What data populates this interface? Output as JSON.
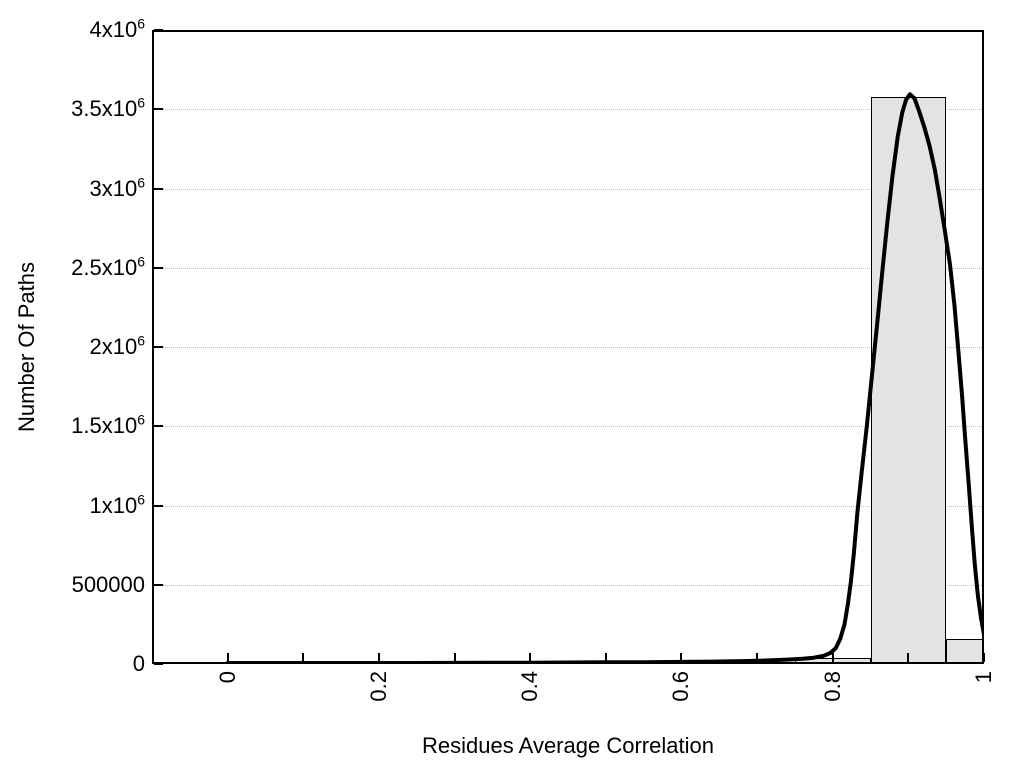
{
  "chart_data": {
    "type": "bar",
    "subtype": "histogram-with-fitted-curve",
    "title": "",
    "xlabel": "Residues Average Correlation",
    "ylabel": "Number Of Paths",
    "xlim": [
      -0.1,
      1.0
    ],
    "ylim": [
      0,
      4000000
    ],
    "grid": "horizontal-dotted",
    "legend": "none",
    "x_ticks": {
      "major_values": [
        0,
        0.2,
        0.4,
        0.6,
        0.8,
        1.0
      ],
      "major_labels": [
        "0",
        "0.2",
        "0.4",
        "0.6",
        "0.8",
        "1"
      ],
      "minor_values": [
        0.1,
        0.3,
        0.5,
        0.7,
        0.9
      ],
      "label_rotation_deg": -90
    },
    "y_ticks": {
      "values": [
        0,
        500000,
        1000000,
        1500000,
        2000000,
        2500000,
        3000000,
        3500000,
        4000000
      ],
      "labels": [
        "0",
        "500000",
        "1x10^6",
        "1.5x10^6",
        "2x10^6",
        "2.5x10^6",
        "3x10^6",
        "3.5x10^6",
        "4x10^6"
      ]
    },
    "grid_y_values": [
      500000,
      1000000,
      1500000,
      2000000,
      2500000,
      3000000,
      3500000
    ],
    "bars": [
      {
        "x0": 0.75,
        "x1": 0.85,
        "count": 40000
      },
      {
        "x0": 0.85,
        "x1": 0.95,
        "count": 3580000
      },
      {
        "x0": 0.95,
        "x1": 1.0,
        "count": 155000
      }
    ],
    "curve_series_name": "fitted-distribution",
    "curve_points": [
      [
        0.0,
        6000
      ],
      [
        0.05,
        6000
      ],
      [
        0.1,
        6000
      ],
      [
        0.15,
        6000
      ],
      [
        0.2,
        6000
      ],
      [
        0.25,
        6500
      ],
      [
        0.3,
        7000
      ],
      [
        0.35,
        7500
      ],
      [
        0.4,
        8500
      ],
      [
        0.45,
        9500
      ],
      [
        0.5,
        10500
      ],
      [
        0.55,
        11500
      ],
      [
        0.6,
        13000
      ],
      [
        0.64,
        15000
      ],
      [
        0.68,
        18000
      ],
      [
        0.7,
        20000
      ],
      [
        0.72,
        23500
      ],
      [
        0.74,
        27500
      ],
      [
        0.76,
        33000
      ],
      [
        0.775,
        40000
      ],
      [
        0.788,
        52000
      ],
      [
        0.797,
        70000
      ],
      [
        0.804,
        100000
      ],
      [
        0.81,
        160000
      ],
      [
        0.8155,
        250000
      ],
      [
        0.82,
        380000
      ],
      [
        0.824,
        520000
      ],
      [
        0.828,
        700000
      ],
      [
        0.8325,
        950000
      ],
      [
        0.838,
        1200000
      ],
      [
        0.845,
        1500000
      ],
      [
        0.852,
        1830000
      ],
      [
        0.859,
        2160000
      ],
      [
        0.865,
        2450000
      ],
      [
        0.872,
        2780000
      ],
      [
        0.879,
        3080000
      ],
      [
        0.886,
        3330000
      ],
      [
        0.892,
        3480000
      ],
      [
        0.897,
        3560000
      ],
      [
        0.902,
        3595000
      ],
      [
        0.908,
        3570000
      ],
      [
        0.914,
        3490000
      ],
      [
        0.921,
        3390000
      ],
      [
        0.928,
        3270000
      ],
      [
        0.935,
        3120000
      ],
      [
        0.941,
        2950000
      ],
      [
        0.948,
        2740000
      ],
      [
        0.955,
        2520000
      ],
      [
        0.961,
        2260000
      ],
      [
        0.966,
        1980000
      ],
      [
        0.971,
        1690000
      ],
      [
        0.975,
        1430000
      ],
      [
        0.98,
        1120000
      ],
      [
        0.984,
        860000
      ],
      [
        0.988,
        620000
      ],
      [
        0.992,
        430000
      ],
      [
        0.996,
        290000
      ],
      [
        1.0,
        185000
      ]
    ],
    "colors": {
      "background": "#ffffff",
      "axis": "#000000",
      "grid": "#c0c0c0",
      "bar_fill": "#e3e3e3",
      "bar_border": "#000000",
      "curve": "#000000",
      "text": "#000000"
    }
  }
}
